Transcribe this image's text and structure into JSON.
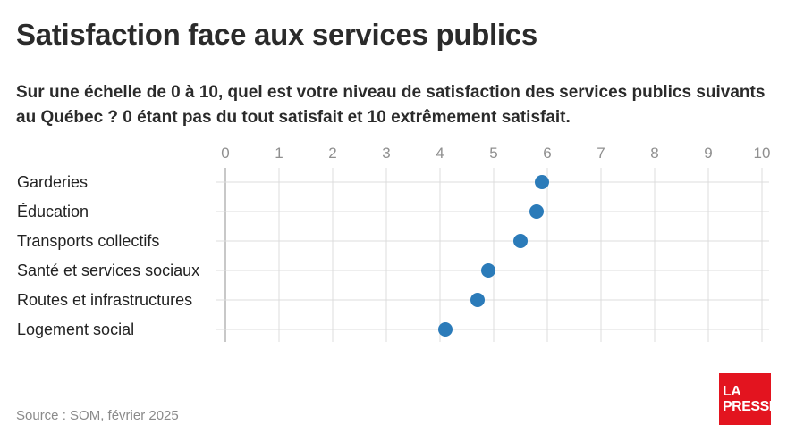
{
  "title": "Satisfaction face aux services publics",
  "subtitle": "Sur une échelle de 0 à 10, quel est votre niveau de satisfaction des services publics suivants au Québec ? 0 étant pas du tout satisfait et 10 extrêmement satisfait.",
  "source": "Source : SOM, février 2025",
  "logo": {
    "line1": "LA",
    "line2": "PRESSE"
  },
  "colors": {
    "dot": "#2b7bb9",
    "grid": "#dcdcdc",
    "logo_bg": "#e3141f"
  },
  "chart_data": {
    "type": "scatter",
    "orientation": "horizontal-dot",
    "categories": [
      "Garderies",
      "Éducation",
      "Transports collectifs",
      "Santé et services sociaux",
      "Routes et infrastructures",
      "Logement social"
    ],
    "values": [
      5.9,
      5.8,
      5.5,
      4.9,
      4.7,
      4.1
    ],
    "xlim": [
      0,
      10
    ],
    "xticks": [
      "0",
      "1",
      "2",
      "3",
      "4",
      "5",
      "6",
      "7",
      "8",
      "9",
      "10"
    ],
    "grid": true,
    "legend": "none"
  }
}
